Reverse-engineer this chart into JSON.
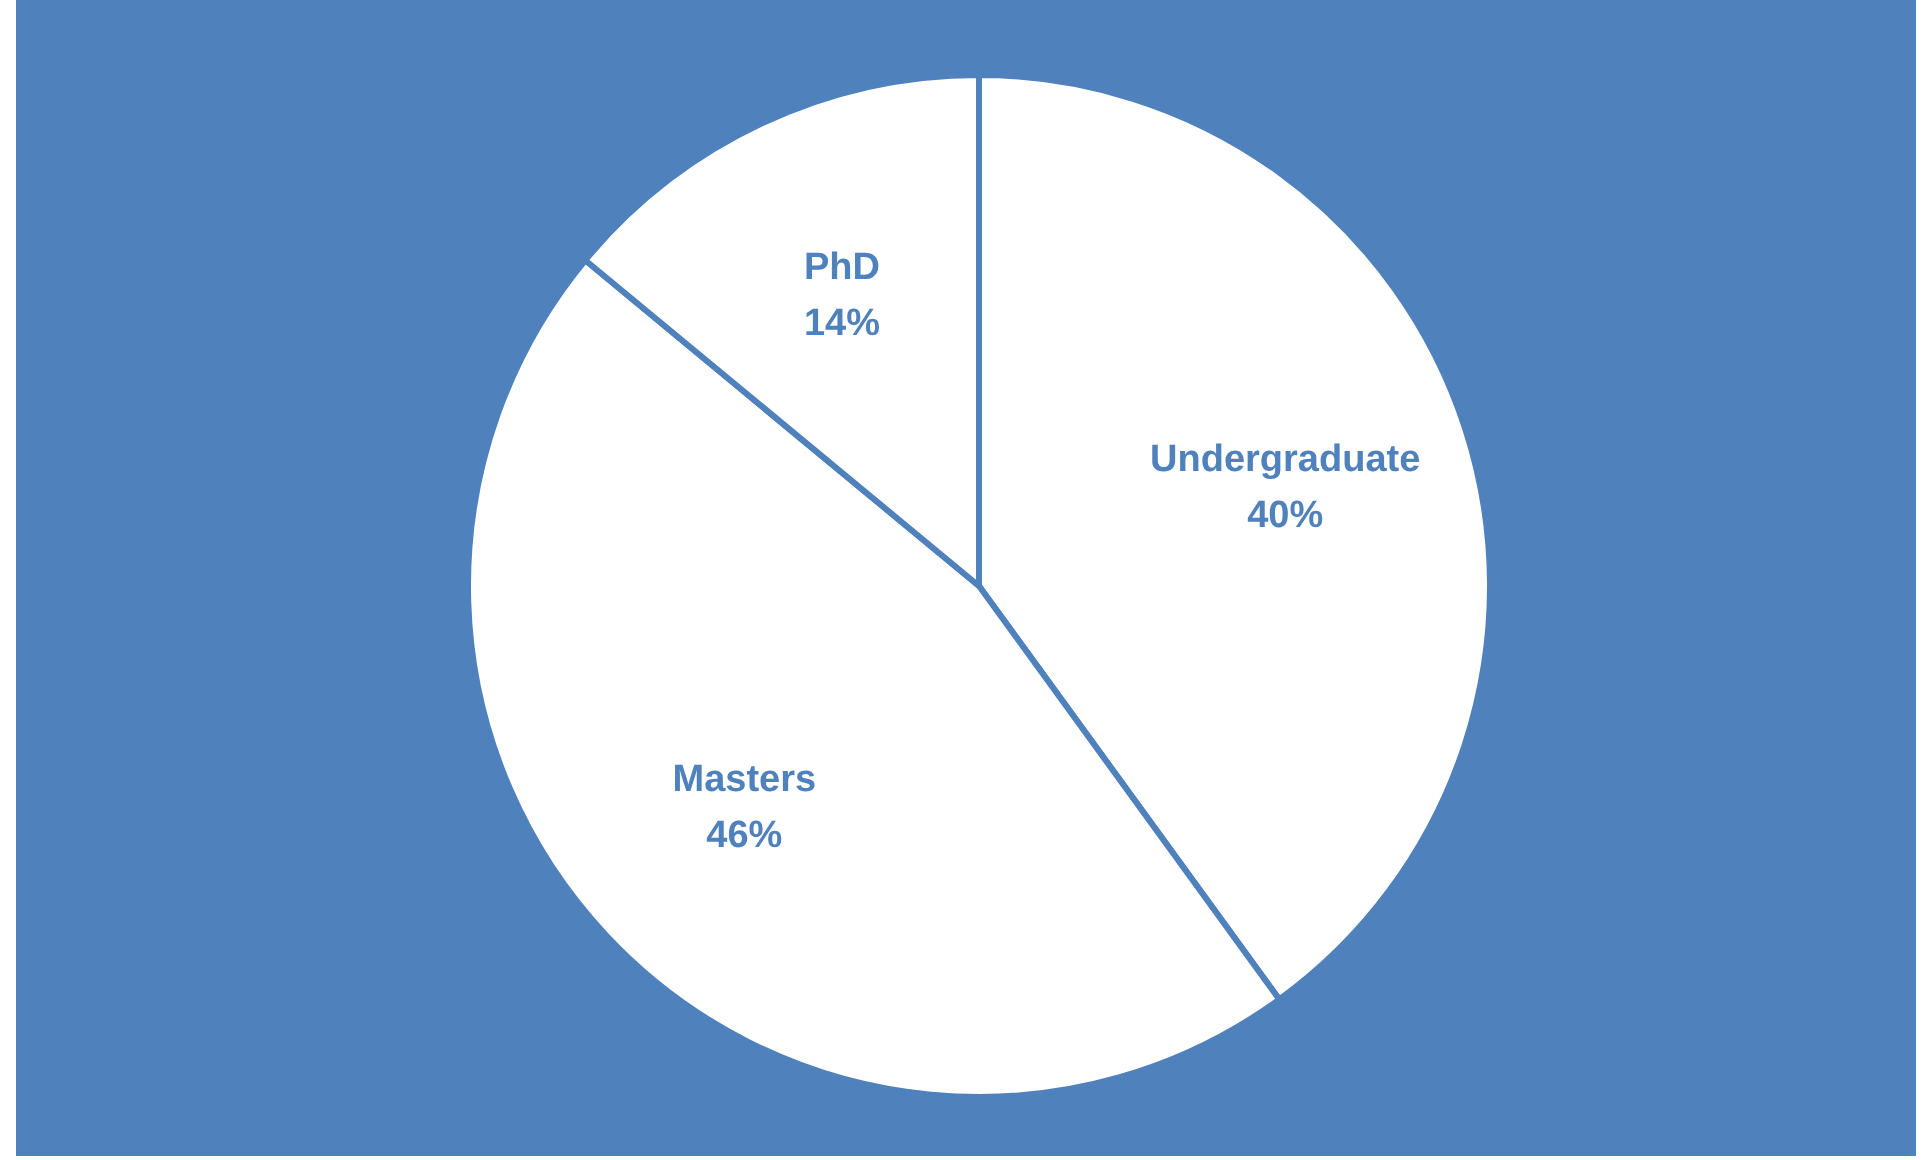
{
  "chart_data": {
    "type": "pie",
    "categories": [
      "Undergraduate",
      "Masters",
      "PhD"
    ],
    "values": [
      40,
      46,
      14
    ],
    "colors": [
      "#ffffff",
      "#ffffff",
      "#ffffff"
    ],
    "value_labels": [
      "40%",
      "46%",
      "14%"
    ]
  }
}
